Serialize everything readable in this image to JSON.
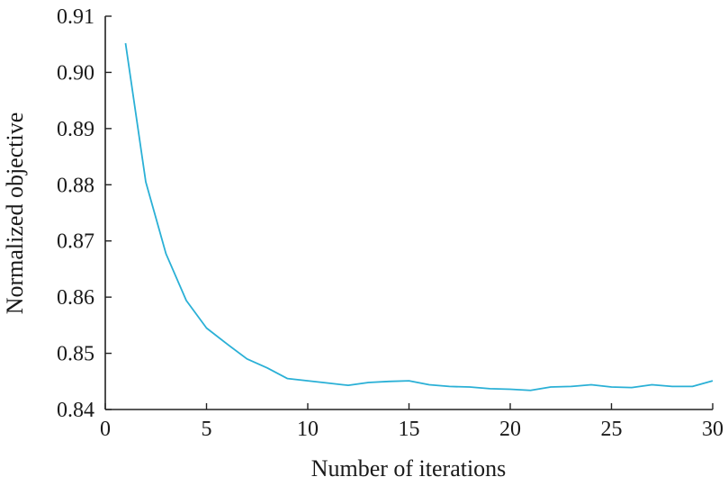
{
  "chart_data": {
    "type": "line",
    "xlabel": "Number of iterations",
    "ylabel": "Normalized objective",
    "xlim": [
      0,
      30
    ],
    "ylim": [
      0.84,
      0.91
    ],
    "xticks": [
      0,
      5,
      10,
      15,
      20,
      25,
      30
    ],
    "xtick_labels": [
      "0",
      "5",
      "10",
      "15",
      "20",
      "25",
      "30"
    ],
    "yticks": [
      0.84,
      0.85,
      0.86,
      0.87,
      0.88,
      0.89,
      0.9,
      0.91
    ],
    "ytick_labels": [
      "0.84",
      "0.85",
      "0.86",
      "0.87",
      "0.88",
      "0.89",
      "0.90",
      "0.91"
    ],
    "grid": false,
    "series": [
      {
        "color": "#2ab0d6",
        "x": [
          1,
          2,
          3,
          4,
          5,
          6,
          7,
          8,
          9,
          10,
          11,
          12,
          13,
          14,
          15,
          16,
          17,
          18,
          19,
          20,
          21,
          22,
          23,
          24,
          25,
          26,
          27,
          28,
          29,
          30
        ],
        "y": [
          0.9052,
          0.8805,
          0.8677,
          0.8594,
          0.8545,
          0.8517,
          0.849,
          0.8474,
          0.8455,
          0.8451,
          0.8447,
          0.8443,
          0.8448,
          0.845,
          0.8451,
          0.8444,
          0.8441,
          0.844,
          0.8437,
          0.8436,
          0.8434,
          0.844,
          0.8441,
          0.8444,
          0.844,
          0.8439,
          0.8444,
          0.8441,
          0.8441,
          0.8451
        ]
      }
    ]
  }
}
